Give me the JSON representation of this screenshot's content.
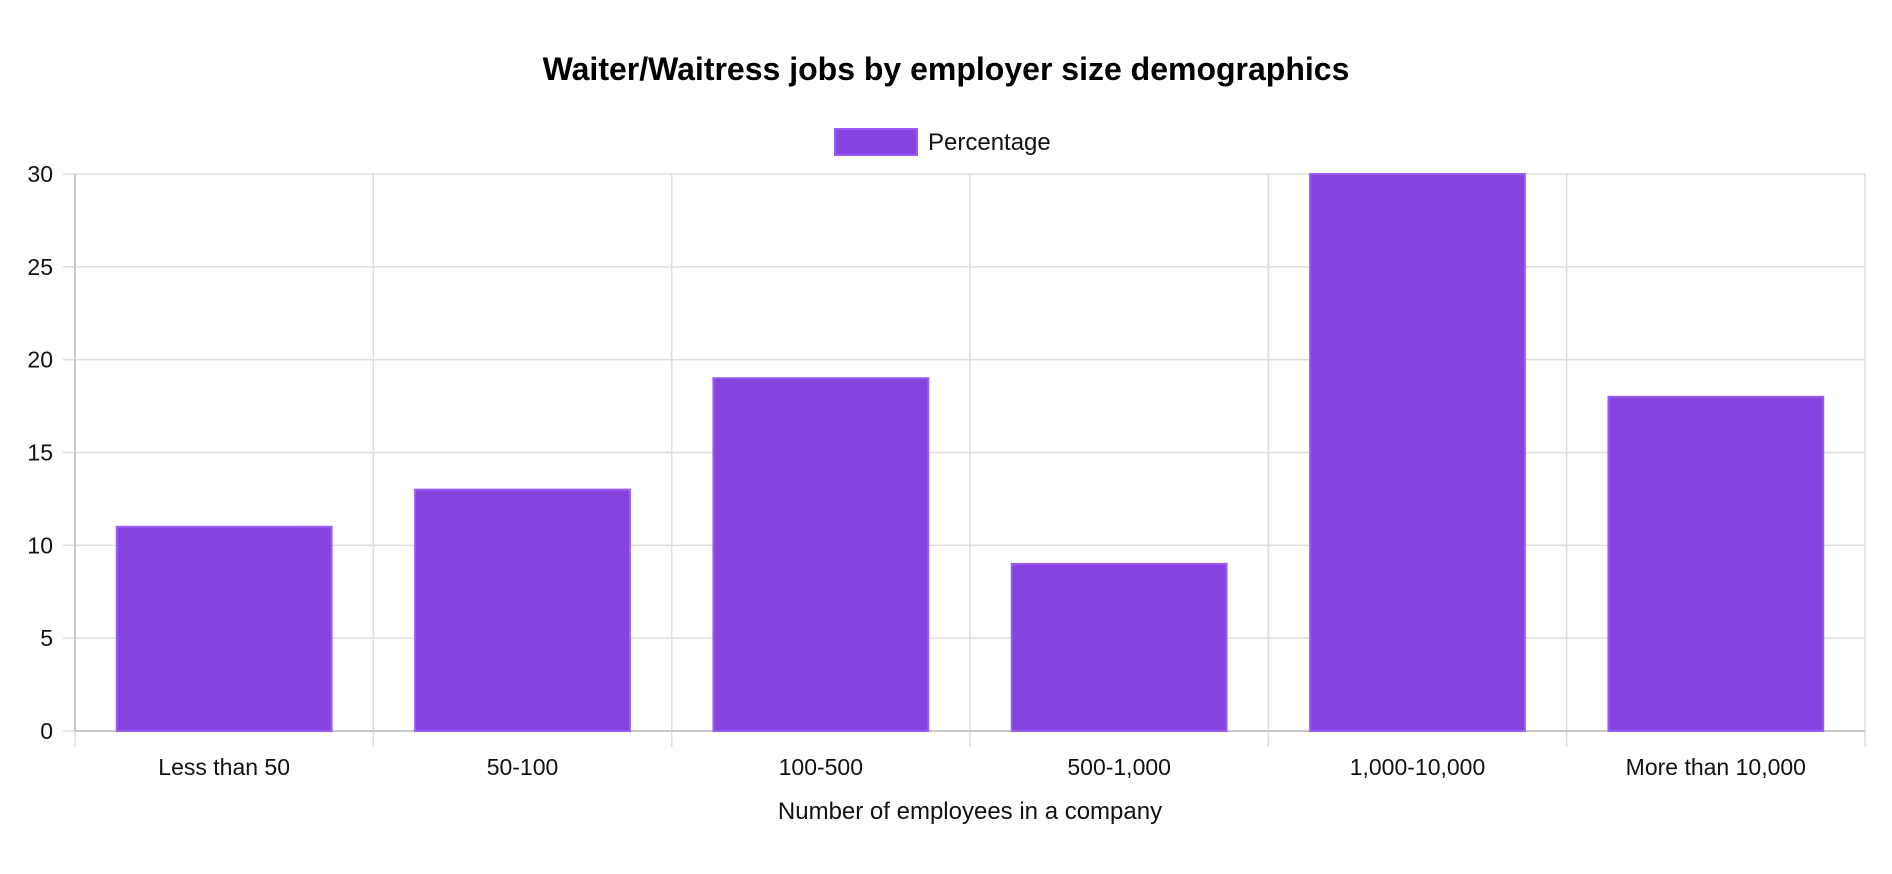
{
  "chart_data": {
    "type": "bar",
    "title": "Waiter/Waitress jobs by employer size demographics",
    "xlabel": "Number of employees in a company",
    "ylabel": "",
    "categories": [
      "Less than 50",
      "50-100",
      "100-500",
      "500-1,000",
      "1,000-10,000",
      "More than 10,000"
    ],
    "series": [
      {
        "name": "Percentage",
        "values": [
          11,
          13,
          19,
          9,
          30,
          18
        ],
        "color": "#8743DF",
        "border_color": "#9A5CF0"
      }
    ],
    "ylim": [
      0,
      30
    ],
    "yticks": [
      "0",
      "5",
      "10",
      "15",
      "20",
      "25",
      "30"
    ],
    "grid": true,
    "legend_position": "top-center"
  }
}
